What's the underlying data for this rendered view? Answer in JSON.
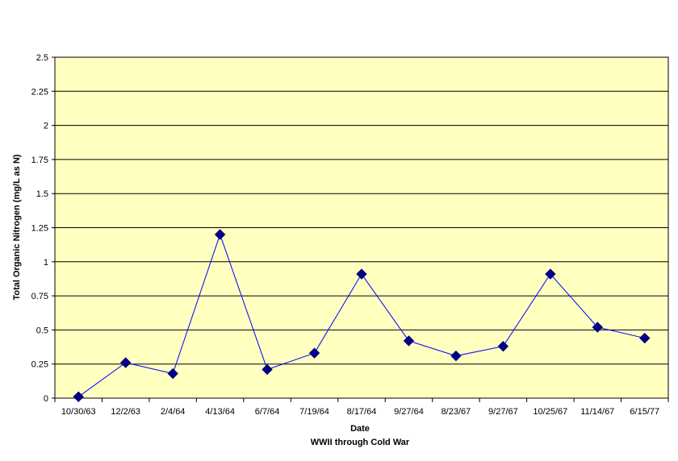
{
  "chart_data": {
    "type": "line",
    "title": "",
    "xlabel": "Date",
    "xlabel_sub": "WWII through Cold War",
    "ylabel": "Total Organic Nitrogen (mg/L as N)",
    "ylim": [
      0,
      2.5
    ],
    "yticks": [
      "0",
      "0.25",
      "0.5",
      "0.75",
      "1",
      "1.25",
      "1.5",
      "1.75",
      "2",
      "2.25",
      "2.5"
    ],
    "grid": "horizontal",
    "legend": "none",
    "categories": [
      "10/30/63",
      "12/2/63",
      "2/4/64",
      "4/13/64",
      "6/7/64",
      "7/19/64",
      "8/17/64",
      "9/27/64",
      "8/23/67",
      "9/27/67",
      "10/25/67",
      "11/14/67",
      "6/15/77"
    ],
    "series": [
      {
        "values": [
          0.01,
          0.26,
          0.18,
          1.2,
          0.21,
          0.33,
          0.91,
          0.42,
          0.31,
          0.38,
          0.91,
          0.52,
          0.44
        ]
      }
    ],
    "colors": {
      "plot_background": "#ffffc0",
      "line": "#0000ff",
      "marker": "#000080",
      "gridline": "#000000"
    },
    "marker": "diamond"
  }
}
